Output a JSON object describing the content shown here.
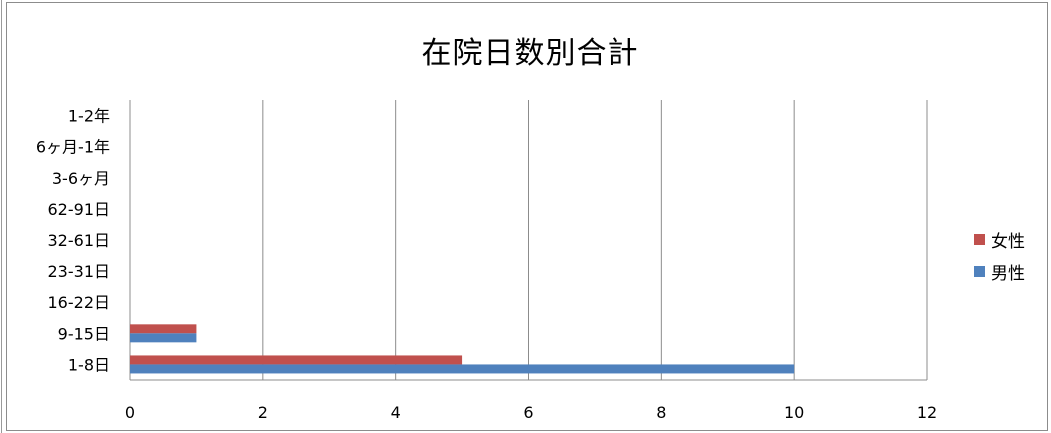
{
  "chart_data": {
    "type": "bar",
    "orientation": "horizontal",
    "title": "在院日数別合計",
    "categories": [
      "1-8日",
      "9-15日",
      "16-22日",
      "23-31日",
      "32-61日",
      "62-91日",
      "3-6ヶ月",
      "6ヶ月-1年",
      "1-2年"
    ],
    "series": [
      {
        "name": "男性",
        "color": "#4f81bd",
        "values": [
          10,
          1,
          0,
          0,
          0,
          0,
          0,
          0,
          0
        ]
      },
      {
        "name": "女性",
        "color": "#c0504d",
        "values": [
          5,
          1,
          0,
          0,
          0,
          0,
          0,
          0,
          0
        ]
      }
    ],
    "xlim": [
      0,
      12
    ],
    "xticks": [
      0,
      2,
      4,
      6,
      8,
      10,
      12
    ],
    "grid": "vertical",
    "legend_position": "right",
    "legend_order": [
      "女性",
      "男性"
    ]
  }
}
